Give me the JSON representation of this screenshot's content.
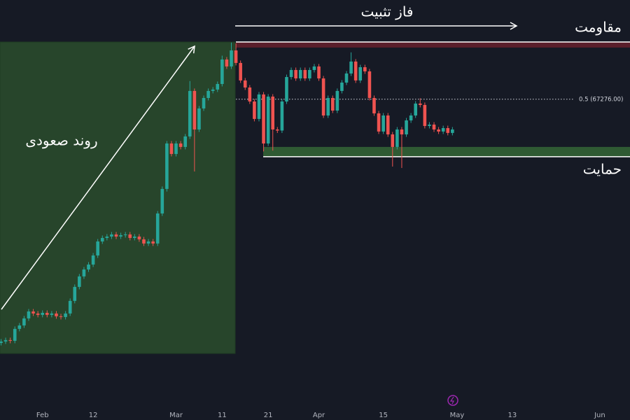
{
  "chart_data": {
    "type": "candlestick",
    "categories": [
      null,
      null,
      null,
      null,
      null,
      null,
      null,
      null,
      null,
      "Feb",
      null,
      null,
      null,
      null,
      null,
      null,
      null,
      null,
      null,
      null,
      "12",
      null,
      null,
      null,
      null,
      null,
      null,
      null,
      null,
      null,
      null,
      null,
      null,
      null,
      null,
      null,
      null,
      null,
      "Mar",
      null,
      null,
      null,
      null,
      null,
      null,
      null,
      null,
      null,
      "11",
      null,
      null,
      null,
      null,
      null,
      null,
      null,
      null,
      null,
      "21",
      null,
      null,
      null,
      null,
      null,
      null,
      null,
      null,
      null,
      null,
      "Apr",
      null,
      null,
      null,
      null,
      null,
      null,
      null,
      null,
      null,
      null,
      null,
      null,
      null,
      "15",
      null,
      null,
      null,
      null,
      null,
      null,
      null,
      null,
      null,
      null,
      null,
      null,
      null,
      null,
      null,
      "May",
      null,
      null,
      null,
      null,
      null,
      null,
      null,
      null,
      null,
      null,
      null,
      "13",
      null,
      null,
      null,
      null,
      null,
      null,
      null,
      null,
      null,
      null,
      null,
      null,
      null,
      null,
      null,
      null,
      null,
      null,
      "Jun"
    ],
    "open": [
      37500,
      37680,
      37850,
      37760,
      39220,
      39640,
      40500,
      41350,
      41100,
      40930,
      41180,
      40930,
      41100,
      40760,
      40670,
      41100,
      42640,
      44350,
      45630,
      46480,
      47080,
      48190,
      49900,
      50330,
      50500,
      50760,
      50500,
      50670,
      50760,
      50330,
      50500,
      50160,
      49650,
      49900,
      49650,
      53320,
      56320,
      61870,
      60590,
      61870,
      61450,
      62730,
      68290,
      63580,
      66150,
      67430,
      68290,
      68460,
      69140,
      72130,
      71280,
      73240,
      71710,
      69570,
      68710,
      67000,
      64870,
      67860,
      61870,
      67600,
      63580,
      63450,
      67000,
      69990,
      70850,
      69820,
      70850,
      69820,
      70850,
      71280,
      69820,
      65290,
      67430,
      65890,
      68290,
      69310,
      70420,
      71880,
      69570,
      71190,
      70680,
      67430,
      65550,
      63330,
      65290,
      62980,
      61450,
      63580,
      62980,
      64690,
      65290,
      66750,
      66580,
      64010,
      64180,
      63580,
      63330,
      63750,
      63160,
      null,
      null,
      null,
      null,
      null,
      null,
      null,
      null,
      null,
      null,
      null,
      null,
      null,
      null,
      null,
      null,
      null,
      null,
      null,
      null,
      null,
      null,
      null,
      null,
      null,
      null,
      null,
      null,
      null,
      null,
      null,
      null
    ],
    "high": [
      37980,
      38150,
      38150,
      39520,
      39940,
      40800,
      41650,
      41650,
      41400,
      41480,
      41480,
      41400,
      41400,
      41060,
      41400,
      42940,
      44650,
      45930,
      46780,
      47380,
      48490,
      50200,
      50630,
      50800,
      51060,
      51060,
      50970,
      51060,
      51060,
      50800,
      50800,
      50460,
      50200,
      50200,
      53620,
      56620,
      62170,
      62170,
      62170,
      62170,
      63030,
      69500,
      68590,
      66450,
      67730,
      68590,
      68760,
      69440,
      72600,
      72430,
      74200,
      74100,
      72010,
      69870,
      69010,
      67300,
      68160,
      68160,
      67900,
      67900,
      63880,
      67300,
      70290,
      71150,
      71150,
      71150,
      71150,
      71150,
      71580,
      71580,
      70120,
      67730,
      67730,
      68590,
      69610,
      70720,
      73000,
      72180,
      71490,
      71490,
      70980,
      67730,
      65850,
      65590,
      65590,
      63280,
      63880,
      63880,
      64990,
      65590,
      67050,
      67400,
      66880,
      64480,
      64480,
      63880,
      64050,
      64050,
      63880,
      null,
      null,
      null,
      null,
      null,
      null,
      null,
      null,
      null,
      null,
      null,
      null,
      null,
      null,
      null,
      null,
      null,
      null,
      null,
      null,
      null,
      null,
      null,
      null,
      null,
      null,
      null,
      null,
      null,
      null,
      null,
      null
    ],
    "low": [
      37200,
      37380,
      37460,
      37460,
      38920,
      39340,
      40200,
      40800,
      40630,
      40630,
      40630,
      40630,
      40460,
      40370,
      40370,
      40800,
      42340,
      44050,
      45330,
      46180,
      46780,
      47890,
      49600,
      50030,
      50200,
      50200,
      50200,
      50370,
      50030,
      50030,
      49860,
      49350,
      49350,
      49350,
      49350,
      53020,
      56000,
      60290,
      60290,
      61150,
      61150,
      62430,
      58450,
      63280,
      65850,
      67130,
      67990,
      68160,
      68840,
      70980,
      70980,
      71410,
      69270,
      68410,
      66700,
      64570,
      64570,
      60900,
      61570,
      61000,
      63150,
      63150,
      66700,
      69690,
      69520,
      69520,
      69520,
      69520,
      70550,
      69520,
      64990,
      64990,
      65590,
      65590,
      67990,
      69010,
      70120,
      69270,
      69270,
      70380,
      67130,
      65250,
      63030,
      63030,
      62680,
      59050,
      61150,
      58880,
      62680,
      64390,
      64990,
      66280,
      63710,
      63710,
      63280,
      63030,
      63030,
      62860,
      62860,
      null,
      null,
      null,
      null,
      null,
      null,
      null,
      null,
      null,
      null,
      null,
      null,
      null,
      null,
      null,
      null,
      null,
      null,
      null,
      null,
      null,
      null,
      null,
      null,
      null,
      null,
      null,
      null,
      null,
      null,
      null,
      null
    ],
    "close": [
      37680,
      37850,
      37760,
      39220,
      39640,
      40500,
      41350,
      41100,
      40930,
      41180,
      40930,
      41100,
      40760,
      40670,
      41100,
      42640,
      44350,
      45630,
      46480,
      47080,
      48190,
      49900,
      50330,
      50500,
      50760,
      50500,
      50670,
      50760,
      50330,
      50500,
      50160,
      49650,
      49900,
      49650,
      53320,
      56320,
      61870,
      60590,
      61870,
      61450,
      62730,
      68290,
      63580,
      66150,
      67430,
      68290,
      68460,
      69140,
      72130,
      71280,
      73240,
      71710,
      69570,
      68710,
      67000,
      64870,
      67860,
      61870,
      67600,
      63580,
      63450,
      67000,
      69990,
      70850,
      69820,
      70850,
      69820,
      70850,
      71280,
      69820,
      65290,
      67430,
      65890,
      68290,
      69310,
      70420,
      71880,
      69570,
      71190,
      70680,
      67430,
      65550,
      63330,
      65290,
      62980,
      61450,
      63580,
      62980,
      64690,
      65290,
      66750,
      66580,
      64010,
      64180,
      63580,
      63330,
      63750,
      63160,
      63580,
      null,
      null,
      null,
      null,
      null,
      null,
      null,
      null,
      null,
      null,
      null,
      null,
      null,
      null,
      null,
      null,
      null,
      null,
      null,
      null,
      null,
      null,
      null,
      null,
      null,
      null,
      null,
      null,
      null,
      null,
      null,
      null
    ],
    "up_color": "#26a69a",
    "down_color": "#ef5350",
    "ylim": [
      29800,
      79400
    ],
    "levels": [
      {
        "value": 67276,
        "label": "0.5 (67276.00)"
      }
    ],
    "zones": [
      {
        "label": "مقاومت",
        "from": 73590,
        "to": 74270,
        "color": "#5a1f2b"
      },
      {
        "label": "حمایت",
        "from": 60250,
        "to": 61450,
        "color": "#2f5a33"
      }
    ],
    "annotations": {
      "trend": "روند صعودی",
      "consolidation": "فاز تثبیت"
    }
  }
}
